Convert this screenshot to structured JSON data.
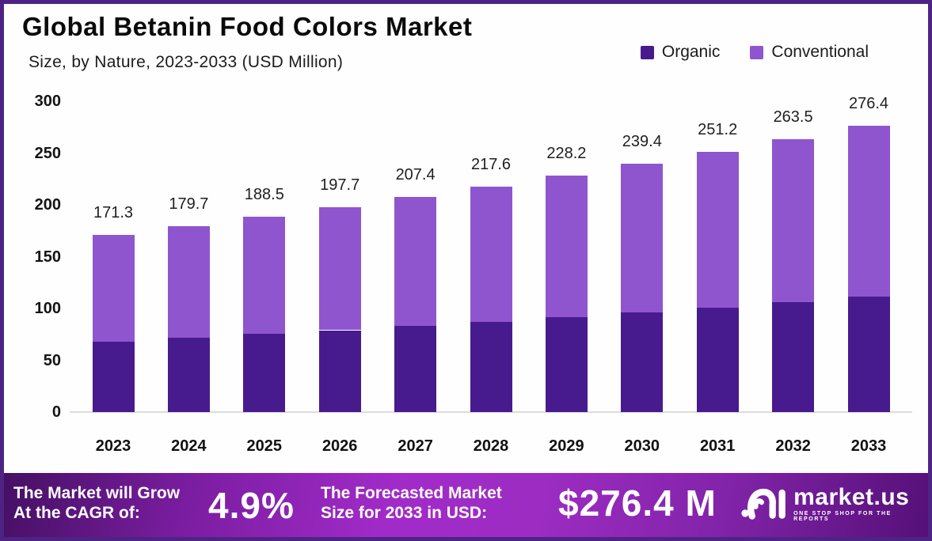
{
  "header": {
    "title": "Global Betanin Food Colors Market",
    "subtitle": "Size, by Nature, 2023-2033 (USD Million)"
  },
  "legend": {
    "items": [
      {
        "label": "Organic",
        "color": "#471b8e"
      },
      {
        "label": "Conventional",
        "color": "#8f55cf"
      }
    ]
  },
  "chart_data": {
    "type": "bar",
    "stacked": true,
    "title": "Global Betanin Food Colors Market Size, by Nature, 2023-2033 (USD Million)",
    "categories": [
      "2023",
      "2024",
      "2025",
      "2026",
      "2027",
      "2028",
      "2029",
      "2030",
      "2031",
      "2032",
      "2033"
    ],
    "series": [
      {
        "name": "Organic",
        "color": "#471b8e",
        "values": [
          68.2,
          71.6,
          75.2,
          79.0,
          83.0,
          87.2,
          91.6,
          96.2,
          101.1,
          106.2,
          111.6
        ]
      },
      {
        "name": "Conventional",
        "color": "#8f55cf",
        "values": [
          103.1,
          108.1,
          113.3,
          118.7,
          124.4,
          130.4,
          136.6,
          143.2,
          150.1,
          157.3,
          164.8
        ]
      }
    ],
    "totals": [
      171.3,
      179.7,
      188.5,
      197.7,
      207.4,
      217.6,
      228.2,
      239.4,
      251.2,
      263.5,
      276.4
    ],
    "yticks": [
      0,
      50,
      100,
      150,
      200,
      250,
      300
    ],
    "ylim": [
      0,
      300
    ],
    "xlabel": "",
    "ylabel": "",
    "grid": false,
    "legend_position": "top-right"
  },
  "banner": {
    "cagr_label_line1": "The Market will Grow",
    "cagr_label_line2": "At the CAGR of:",
    "cagr_value": "4.9%",
    "forecast_label_line1": "The Forecasted Market",
    "forecast_label_line2": "Size for 2033 in USD:",
    "forecast_value": "$276.4 M",
    "logo_text": "market.us",
    "logo_tagline": "ONE STOP SHOP FOR THE REPORTS",
    "background_start": "#451063",
    "background_mid": "#a12bc9",
    "background_end": "#551078"
  },
  "colors": {
    "frame_border": "#4d2484",
    "axis_line": "#dcdcdc",
    "text": "#111111"
  }
}
